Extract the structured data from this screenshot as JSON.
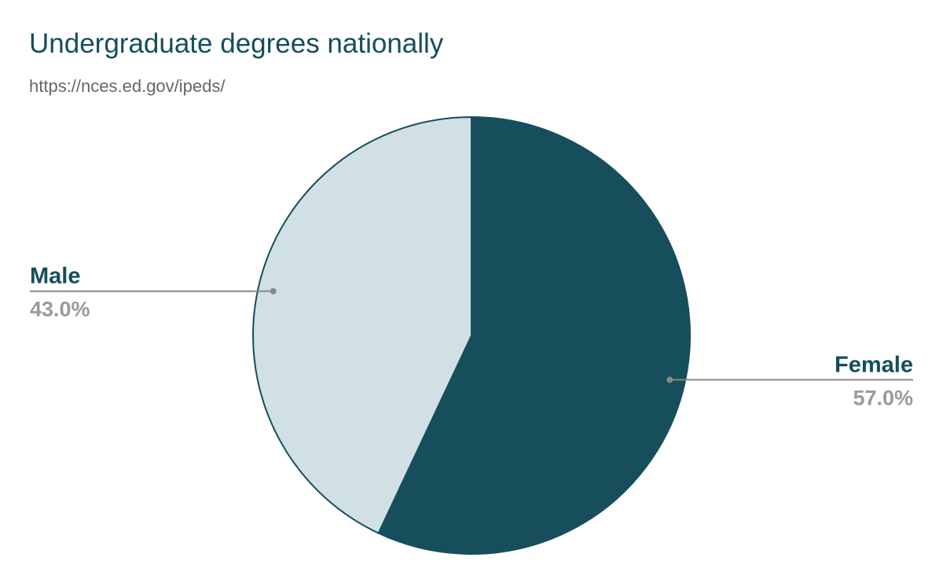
{
  "chart_data": {
    "type": "pie",
    "title": "Undergraduate degrees nationally",
    "subtitle": "https://nces.ed.gov/ipeds/",
    "slices": [
      {
        "label": "Female",
        "value": 57.0,
        "display": "57.0%",
        "color": "#164e5b"
      },
      {
        "label": "Male",
        "value": 43.0,
        "display": "43.0%",
        "color": "#d0e0e4"
      }
    ],
    "start_angle_deg": 0,
    "direction": "clockwise",
    "slice_border_color": "#164e5b",
    "leader_color": "#888888"
  }
}
